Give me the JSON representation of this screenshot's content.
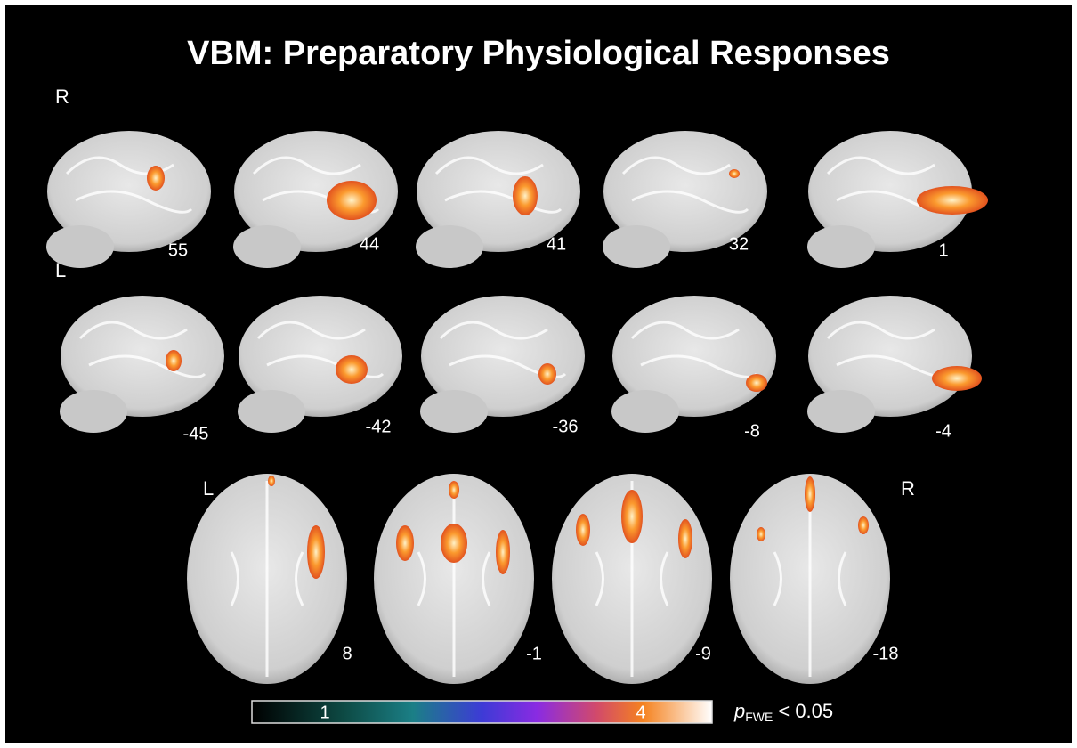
{
  "title": "VBM: Preparatory Physiological Responses",
  "rows": [
    {
      "side": "R",
      "slices": [
        55,
        44,
        41,
        32,
        1
      ]
    },
    {
      "side": "L",
      "slices": [
        -45,
        -42,
        -36,
        -8,
        -4
      ]
    },
    {
      "side_left": "L",
      "side_right": "R",
      "slices": [
        8,
        -1,
        -9,
        -18
      ]
    }
  ],
  "colorbar": {
    "ticks": [
      1,
      4
    ],
    "label": {
      "symbol": "p",
      "subscript": "FWE",
      "threshold": "< 0.05"
    }
  }
}
